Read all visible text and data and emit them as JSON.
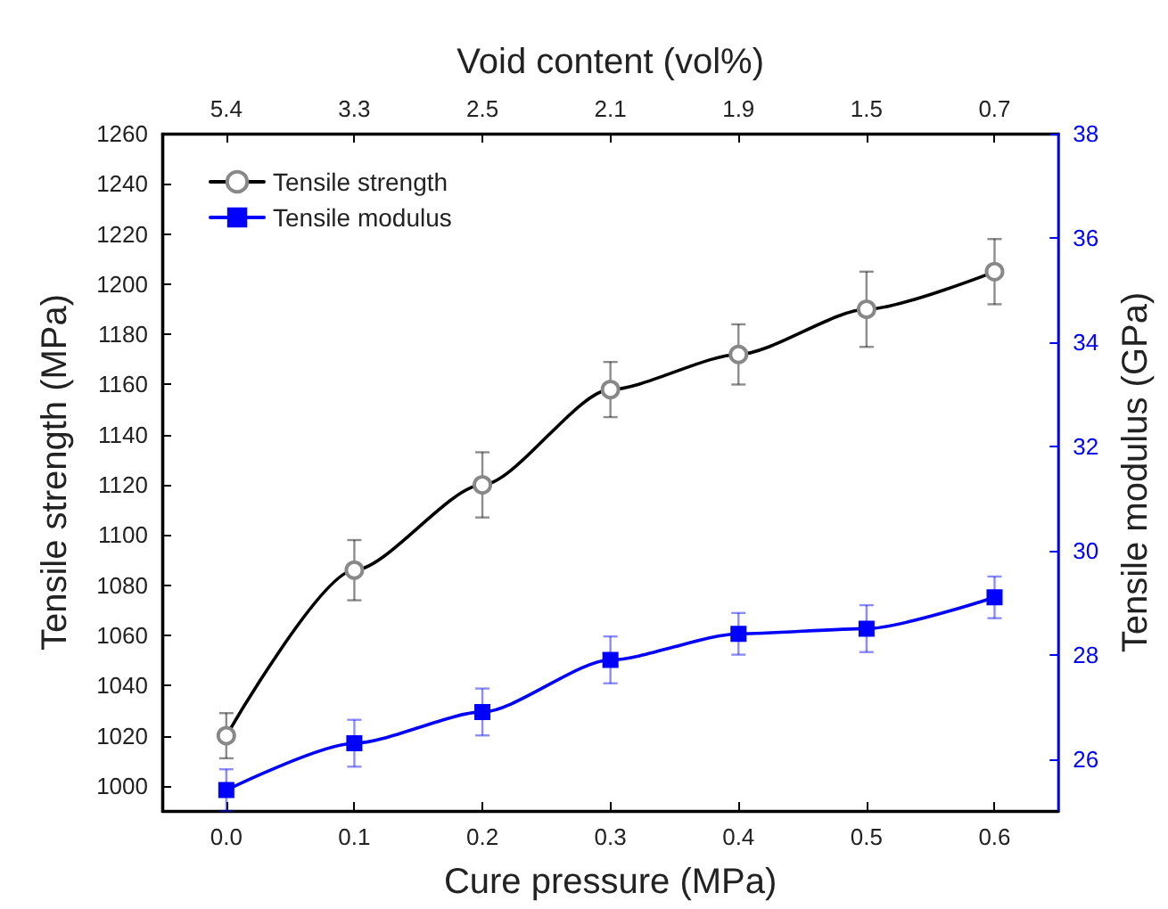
{
  "chart_data": {
    "type": "line",
    "xlabel": "Cure pressure (MPa)",
    "ylabel": "Tensile strength (MPa)",
    "y2label": "Tensile modulus (GPa)",
    "x2label": "Void content (vol%)",
    "x": [
      0,
      0.1,
      0.2,
      0.3,
      0.4,
      0.5,
      0.6
    ],
    "series": [
      {
        "name": "Tensile strength",
        "color": "#000000",
        "marker": "circle",
        "values": [
          1020,
          1086,
          1120,
          1158,
          1172,
          1190,
          1205
        ],
        "errors": [
          9,
          12,
          13,
          11,
          12,
          15,
          13
        ]
      },
      {
        "name": "Tensile modulus",
        "color": "#0000ff",
        "marker": "square",
        "axis": "y2",
        "values": [
          25.4,
          26.3,
          26.9,
          27.9,
          28.4,
          28.5,
          29.1
        ],
        "errors": [
          0.4,
          0.45,
          0.45,
          0.45,
          0.4,
          0.45,
          0.4
        ]
      }
    ],
    "xlim": [
      -0.05,
      0.65
    ],
    "xticks": [
      {
        "value": 0,
        "label": "0.0"
      },
      0.1,
      0.2,
      0.3,
      0.4,
      0.5,
      0.6
    ],
    "annotations": [
      {
        "text": "5.4",
        "x": 0
      },
      {
        "text": "3.3",
        "x": 0.1
      },
      {
        "text": "2.5",
        "x": 0.2
      },
      {
        "text": "2.1",
        "x": 0.3
      },
      {
        "text": "1.9",
        "x": 0.4
      },
      {
        "text": "1.5",
        "x": 0.5
      },
      {
        "text": "0.7",
        "x": 0.6
      }
    ],
    "ylim": [
      990,
      1260
    ],
    "yticks": [
      1000,
      1020,
      1040,
      1060,
      1080,
      1100,
      1120,
      1140,
      1160,
      1180,
      1200,
      1220,
      1240,
      1260
    ],
    "y2lim": [
      25,
      38
    ],
    "y2ticks": [
      26,
      28,
      30,
      32,
      34,
      36,
      38
    ],
    "legend": "top left",
    "grid": false,
    "line_style": "solid"
  }
}
